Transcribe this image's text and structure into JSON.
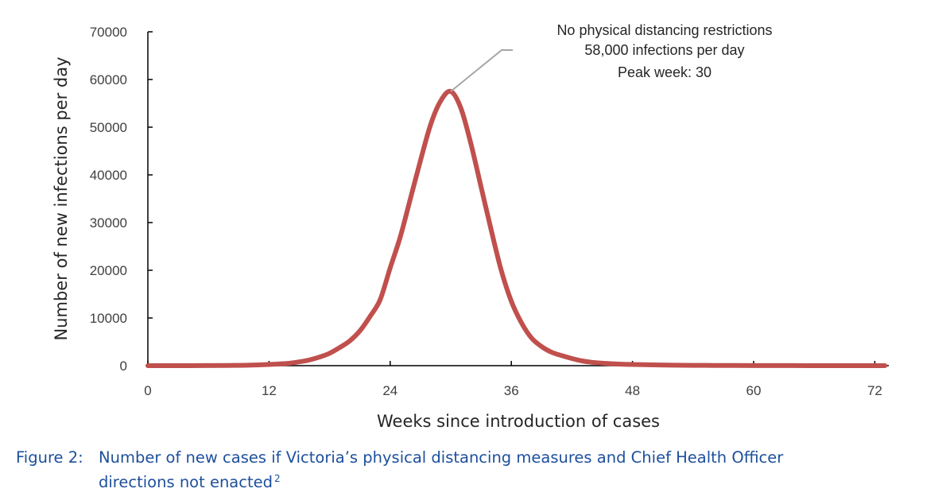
{
  "chart_data": {
    "type": "line",
    "xlabel": "Weeks since introduction of cases",
    "ylabel": "Number of new infections per day",
    "xlim": [
      0,
      73
    ],
    "ylim": [
      0,
      70000
    ],
    "x_ticks": [
      "0",
      "12",
      "24",
      "36",
      "48",
      "60",
      "72"
    ],
    "y_ticks": [
      "0",
      "10000",
      "20000",
      "30000",
      "40000",
      "50000",
      "60000",
      "70000"
    ],
    "grid": false,
    "series": [
      {
        "color": "#c0504d",
        "x": [
          0,
          4,
          8,
          10,
          12,
          14,
          15,
          16,
          17,
          18,
          19,
          20,
          21,
          22,
          23,
          24,
          25,
          26,
          27,
          28,
          29,
          30,
          31,
          32,
          33,
          34,
          35,
          36,
          37,
          38,
          39,
          40,
          41,
          42,
          43,
          44,
          46,
          48,
          52,
          56,
          60,
          64,
          68,
          73
        ],
        "values": [
          0,
          0,
          50,
          100,
          250,
          500,
          800,
          1200,
          1800,
          2600,
          3800,
          5200,
          7300,
          10300,
          13800,
          20500,
          27000,
          35000,
          43000,
          50500,
          55500,
          57500,
          54000,
          46500,
          37500,
          28500,
          20000,
          13500,
          9000,
          5800,
          4000,
          2800,
          2100,
          1500,
          1000,
          700,
          400,
          250,
          100,
          50,
          20,
          10,
          0,
          0
        ]
      }
    ],
    "annotation": {
      "lines": [
        "No physical distancing restrictions",
        "58,000 infections per day",
        "Peak week: 30"
      ],
      "x": 30,
      "y": 57500
    }
  },
  "caption": {
    "label": "Figure 2:",
    "line1": "Number of new cases if Victoria’s physical distancing measures and Chief Health Officer",
    "line2": "directions not enacted",
    "footnote": "2"
  }
}
